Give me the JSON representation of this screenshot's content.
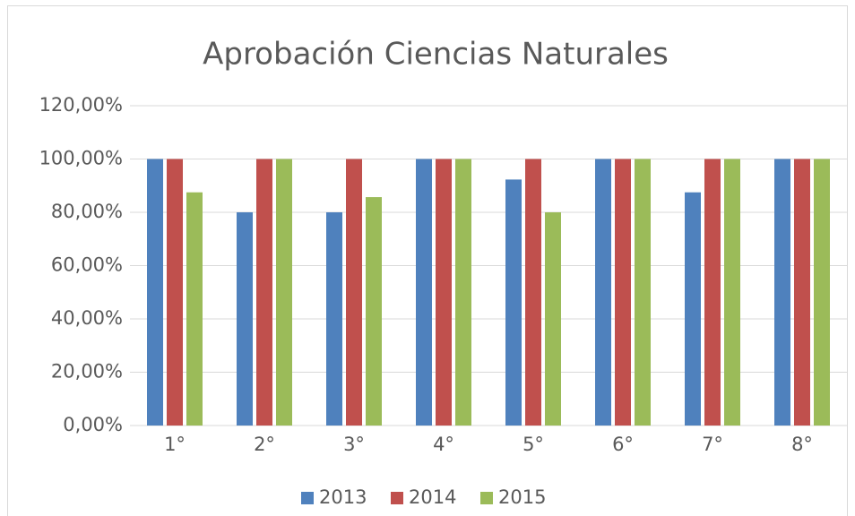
{
  "chart_data": {
    "type": "bar",
    "title": "Aprobación Ciencias Naturales",
    "categories": [
      "1°",
      "2°",
      "3°",
      "4°",
      "5°",
      "6°",
      "7°",
      "8°"
    ],
    "series": [
      {
        "name": "2013",
        "color": "#4f81bd",
        "values": [
          100,
          80,
          80,
          100,
          92.3,
          100,
          87.5,
          100
        ]
      },
      {
        "name": "2014",
        "color": "#c0504d",
        "values": [
          100,
          100,
          100,
          100,
          100,
          100,
          100,
          100
        ]
      },
      {
        "name": "2015",
        "color": "#9bbb59",
        "values": [
          87.5,
          100,
          85.7,
          100,
          80,
          100,
          100,
          100
        ]
      }
    ],
    "ylim": [
      0,
      120
    ],
    "yticks": [
      {
        "value": 0,
        "label": "0,00%"
      },
      {
        "value": 20,
        "label": "20,00%"
      },
      {
        "value": 40,
        "label": "40,00%"
      },
      {
        "value": 60,
        "label": "60,00%"
      },
      {
        "value": 80,
        "label": "80,00%"
      },
      {
        "value": 100,
        "label": "100,00%"
      },
      {
        "value": 120,
        "label": "120,00%"
      }
    ],
    "grid": true,
    "legend": "bottom"
  }
}
